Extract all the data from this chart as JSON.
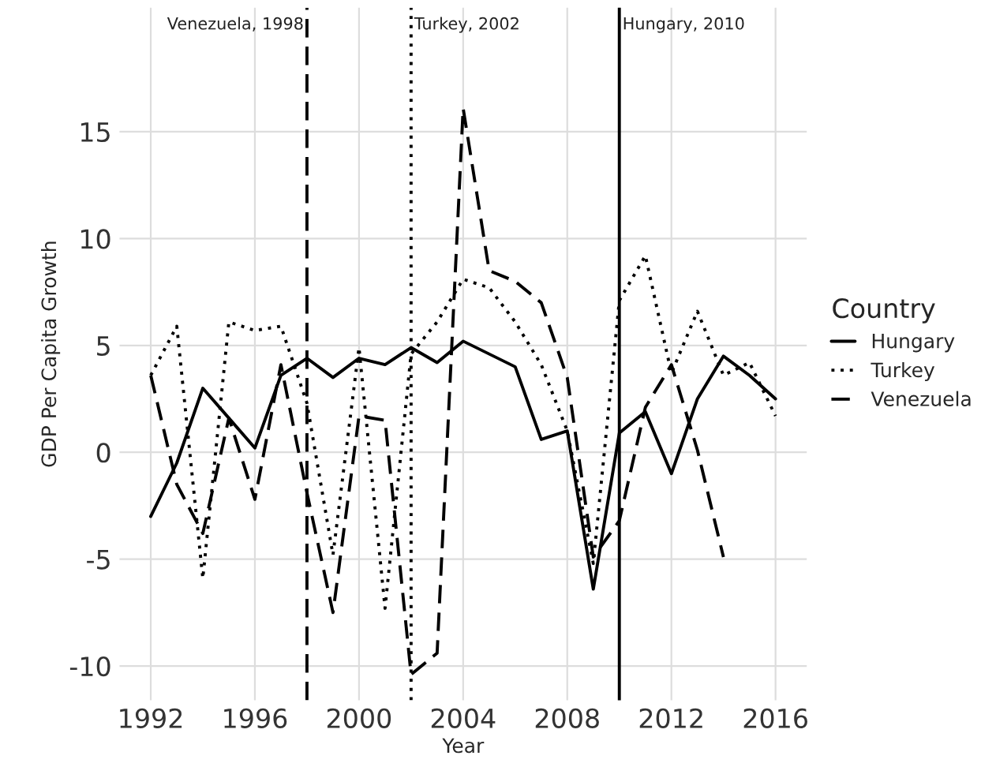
{
  "chart_data": {
    "type": "line",
    "xlabel": "Year",
    "ylabel": "GDP Per Capita Growth",
    "legend_title": "Country",
    "legend": "right",
    "grid": true,
    "marker": "none",
    "x": [
      1992,
      1993,
      1994,
      1995,
      1996,
      1997,
      1998,
      1999,
      2000,
      2001,
      2002,
      2003,
      2004,
      2005,
      2006,
      2007,
      2008,
      2009,
      2010,
      2011,
      2012,
      2013,
      2014,
      2015,
      2016
    ],
    "xlim": [
      1990.8,
      2017.2
    ],
    "xticks": [
      1992,
      1996,
      2000,
      2004,
      2008,
      2012,
      2016
    ],
    "ylim": [
      -11.6,
      20.8
    ],
    "yticks": [
      -10,
      -5,
      0,
      5,
      10,
      15
    ],
    "series": [
      {
        "name": "Hungary",
        "color": "#000000",
        "line_style": "solid",
        "values": [
          -3.0,
          -0.5,
          3.0,
          1.6,
          0.2,
          3.6,
          4.4,
          3.5,
          4.4,
          4.1,
          4.9,
          4.2,
          5.2,
          4.6,
          4.0,
          0.6,
          1.0,
          -6.4,
          0.9,
          1.9,
          -1.0,
          2.5,
          4.5,
          3.6,
          2.5
        ]
      },
      {
        "name": "Turkey",
        "color": "#000000",
        "line_style": "dotted",
        "values": [
          3.6,
          5.9,
          -5.9,
          6.1,
          5.7,
          5.9,
          2.3,
          -4.8,
          4.9,
          -7.3,
          4.6,
          6.1,
          8.1,
          7.7,
          6.1,
          4.1,
          1.0,
          -5.2,
          7.1,
          9.2,
          3.7,
          6.6,
          3.6,
          4.2,
          1.7
        ]
      },
      {
        "name": "Venezuela",
        "color": "#000000",
        "line_style": "dashed",
        "values": [
          3.6,
          -1.5,
          -3.8,
          1.6,
          -2.2,
          4.1,
          -1.9,
          -7.5,
          1.7,
          1.5,
          -10.4,
          -9.4,
          16.1,
          8.5,
          8.0,
          7.0,
          3.5,
          -4.9,
          -3.2,
          2.1,
          4.1,
          0.1,
          -4.9,
          null,
          null
        ]
      }
    ],
    "ref_lines": [
      {
        "axis": "x",
        "value": 1998,
        "label": "Venezuela, 1998",
        "line_style": "dashed",
        "color": "#000000"
      },
      {
        "axis": "x",
        "value": 2002,
        "label": "Turkey, 2002",
        "line_style": "dotted",
        "color": "#000000"
      },
      {
        "axis": "x",
        "value": 2010,
        "label": "Hungary, 2010",
        "line_style": "solid",
        "color": "#000000"
      }
    ]
  }
}
